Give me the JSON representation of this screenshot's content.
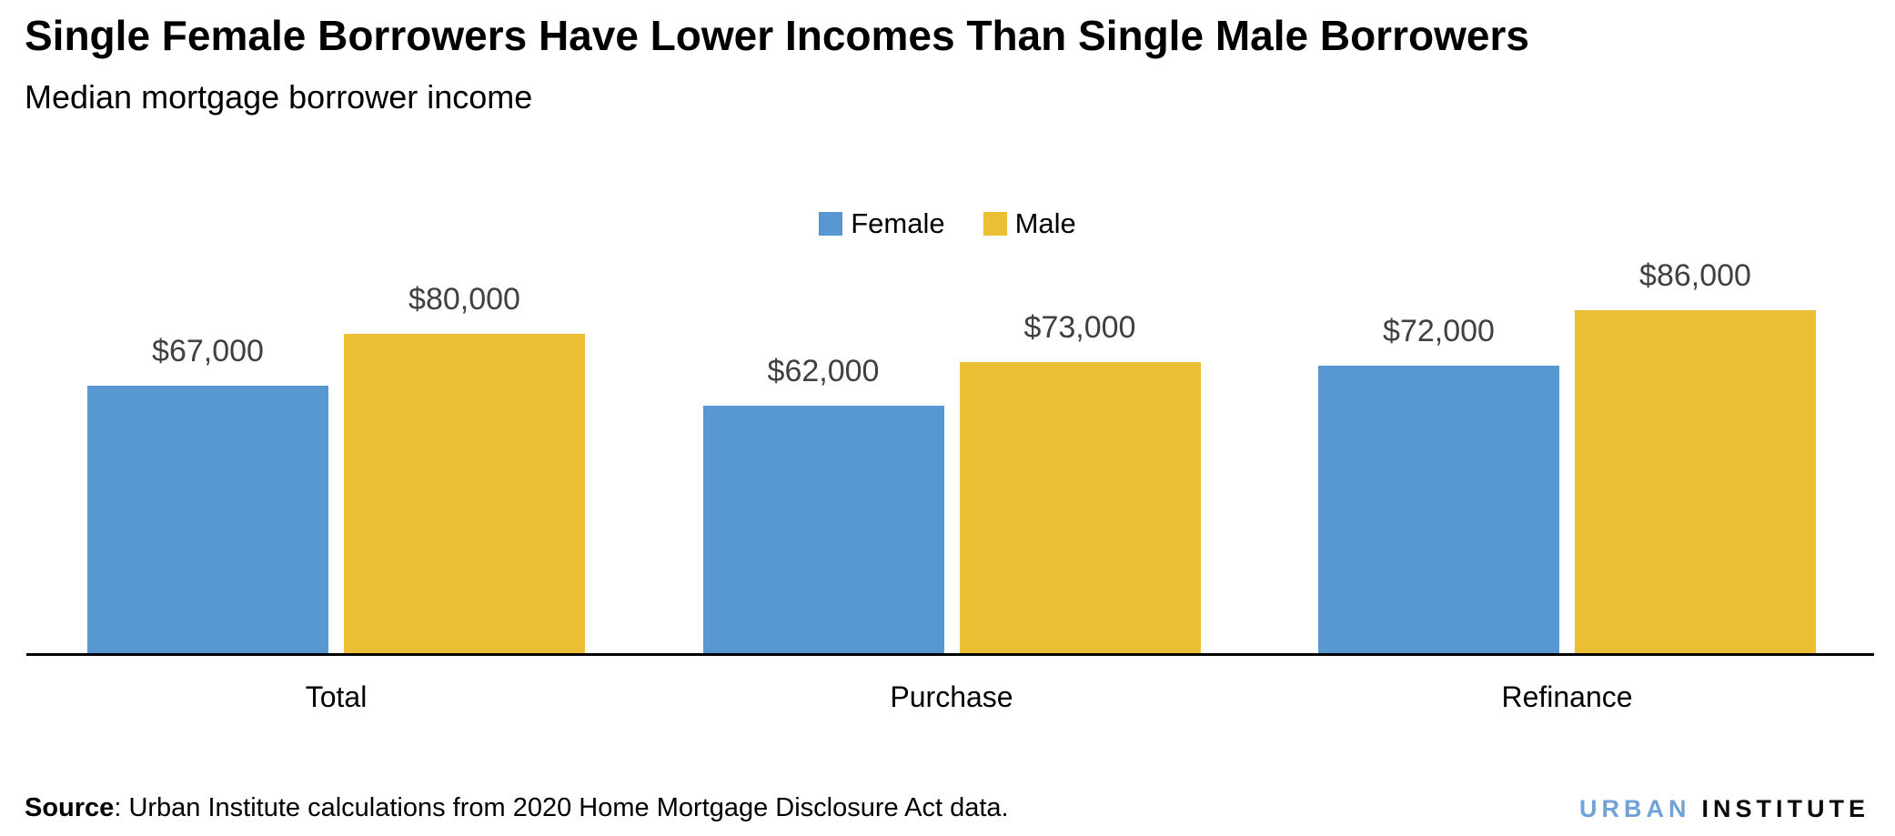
{
  "chart": {
    "title": "Single Female Borrowers Have Lower Incomes Than Single Male Borrowers",
    "subtitle": "Median mortgage borrower income"
  },
  "chart_data": {
    "type": "bar",
    "categories": [
      "Total",
      "Purchase",
      "Refinance"
    ],
    "series": [
      {
        "name": "Female",
        "color": "#5798d2",
        "values": [
          67000,
          62000,
          72000
        ],
        "labels": [
          "$67,000",
          "$62,000",
          "$72,000"
        ]
      },
      {
        "name": "Male",
        "color": "#ecbe33",
        "values": [
          80000,
          73000,
          86000
        ],
        "labels": [
          "$80,000",
          "$73,000",
          "$86,000"
        ]
      }
    ],
    "title": "Single Female Borrowers Have Lower Incomes Than Single Male Borrowers",
    "xlabel": "",
    "ylabel": "Median mortgage borrower income",
    "ylim": [
      0,
      86000
    ],
    "grid": false,
    "legend_position": "top-center",
    "value_label_color": "#404040",
    "axis_line_color": "#000000"
  },
  "footer": {
    "source_label": "Source",
    "source_rest": ": Urban Institute calculations from 2020 Home Mortgage Disclosure Act data.",
    "logo_urban": "URBAN",
    "logo_institute": "INSTITUTE",
    "logo_urban_color": "#71a3d9"
  }
}
